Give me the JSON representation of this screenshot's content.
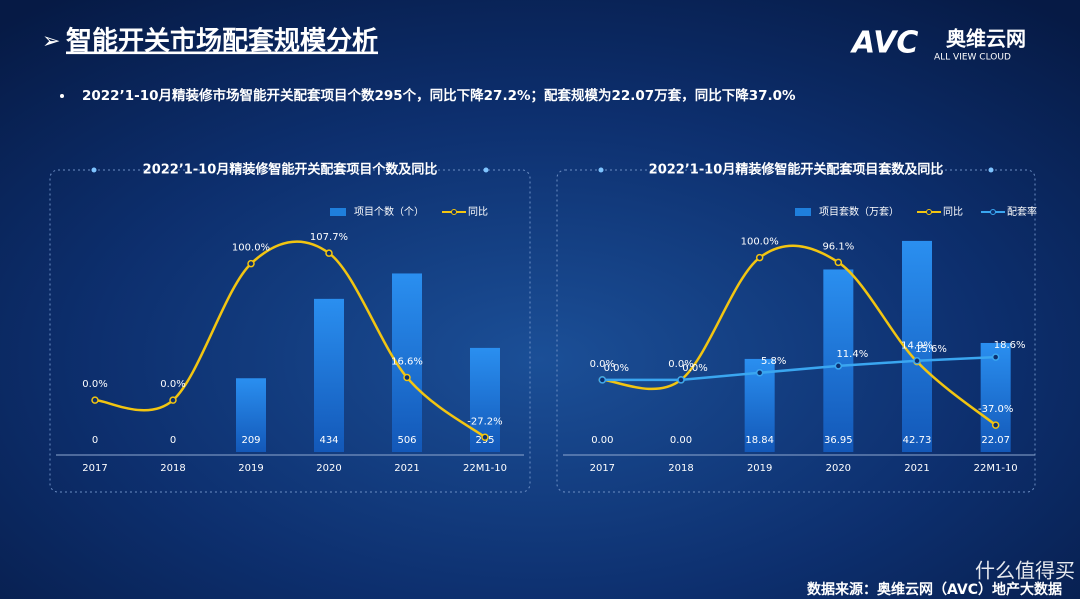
{
  "title": "智能开关市场配套规模分析",
  "logo": {
    "brand": "AVC",
    "name": "奥维云网",
    "tagline": "ALL VIEW CLOUD"
  },
  "summary": "2022’1-10月精装修市场智能开关配套项目个数295个，同比下降27.2%；配套规模为22.07万套，同比下降37.0%",
  "source": "数据来源：奥维云网（AVC）地产大数据",
  "watermark": "什么值得买",
  "chart_data": [
    {
      "type": "combo",
      "title": "2022’1-10月精装修智能开关配套项目个数及同比",
      "categories": [
        "2017",
        "2018",
        "2019",
        "2020",
        "2021",
        "22M1-10"
      ],
      "ylim": [
        0,
        700
      ],
      "y2lim": [
        -38,
        143
      ],
      "series": [
        {
          "name": "项目个数（个）",
          "type": "bar",
          "color": "#1f7fdc",
          "values": [
            0,
            0,
            209,
            434,
            506,
            295
          ]
        },
        {
          "name": "同比",
          "type": "line",
          "axis": "y2",
          "color": "#f2c511",
          "values": [
            0,
            0,
            100,
            107.7,
            16.6,
            -27.2
          ],
          "value_labels": [
            "0.0%",
            "0.0%",
            "100.0%",
            "107.7%",
            "16.6%",
            "-27.2%"
          ]
        }
      ]
    },
    {
      "type": "combo",
      "title": "2022’1-10月精装修智能开关配套项目套数及同比",
      "categories": [
        "2017",
        "2018",
        "2019",
        "2020",
        "2021",
        "22M1-10"
      ],
      "ylim": [
        0,
        50
      ],
      "y2lim": [
        -59,
        143
      ],
      "series": [
        {
          "name": "项目套数（万套）",
          "type": "bar",
          "color": "#1f7fdc",
          "values": [
            0,
            0,
            18.84,
            36.95,
            42.73,
            22.07
          ],
          "value_labels": [
            "0.00",
            "0.00",
            "18.84",
            "36.95",
            "42.73",
            "22.07"
          ]
        },
        {
          "name": "同比",
          "type": "line",
          "axis": "y2",
          "color": "#f2c511",
          "values": [
            0,
            0,
            100,
            96.1,
            14.9,
            -37.0
          ],
          "value_labels": [
            "0.0%",
            "0.0%",
            "100.0%",
            "96.1%",
            "14.9%",
            "-37.0%"
          ]
        },
        {
          "name": "配套率",
          "type": "line",
          "axis": "y2",
          "color": "#3aa6f0",
          "values": [
            0,
            0,
            5.8,
            11.4,
            15.6,
            18.6
          ],
          "value_labels": [
            "0.0%",
            "0.0%",
            "5.8%",
            "11.4%",
            "15.6%",
            "18.6%"
          ]
        }
      ]
    }
  ]
}
